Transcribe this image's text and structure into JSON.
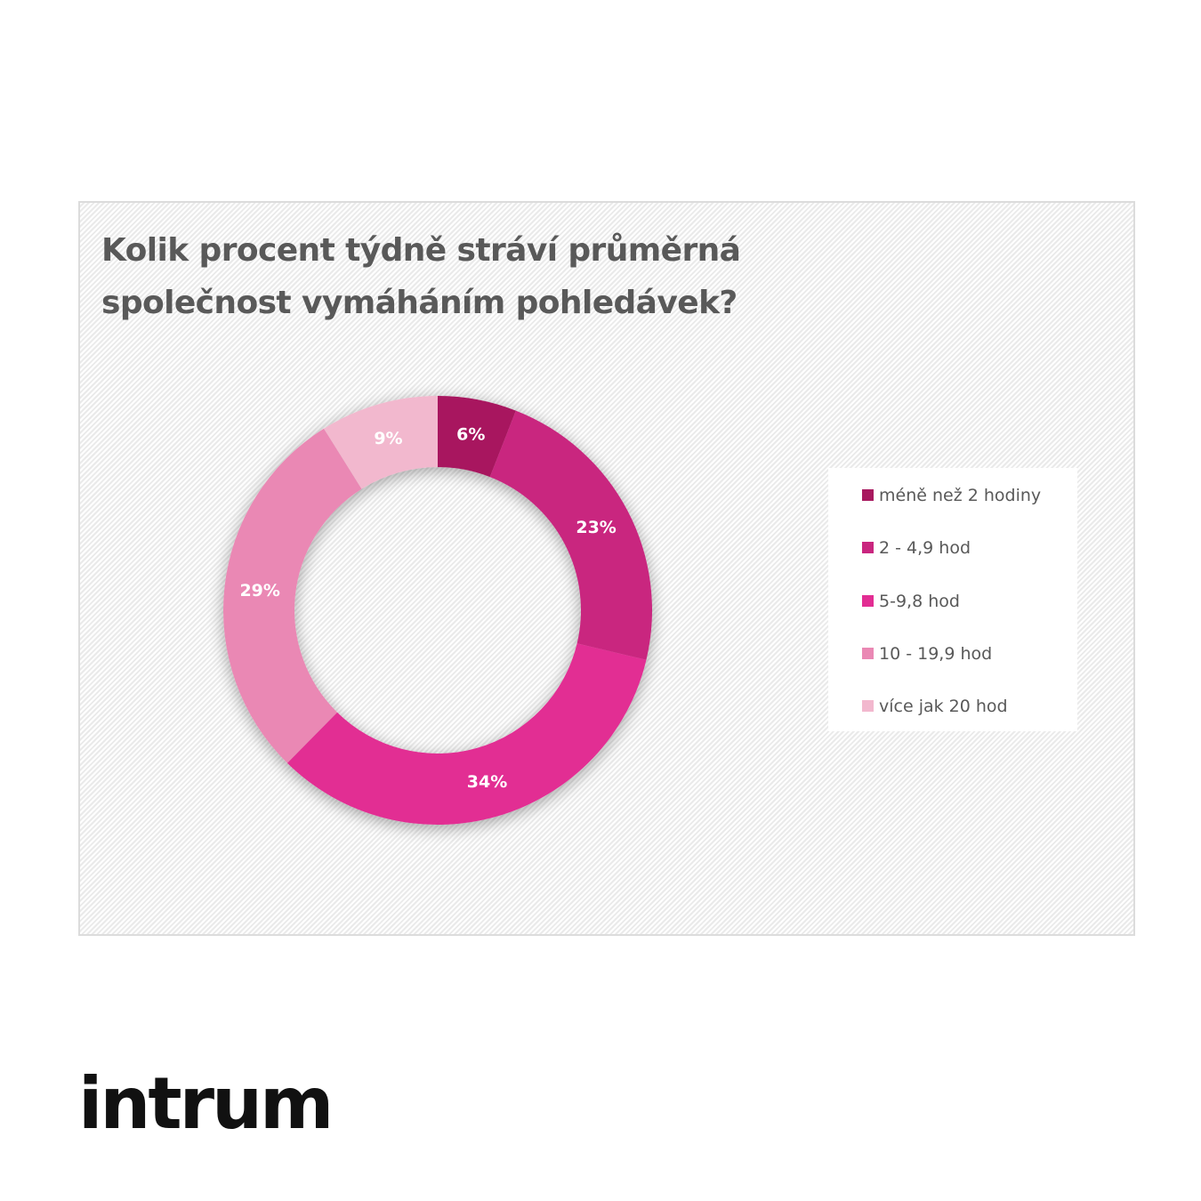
{
  "chart_data": {
    "type": "pie",
    "variant": "donut",
    "title": "Kolik procent týdně stráví průměrná společnost vymáháním pohledávek?",
    "categories": [
      "méně než 2 hodiny",
      "2 - 4,9 hod",
      "5-9,8 hod",
      "10 - 19,9 hod",
      "více jak 20 hod"
    ],
    "values": [
      6,
      23,
      34,
      29,
      9
    ],
    "data_labels": [
      "6%",
      "23%",
      "34%",
      "29%",
      "9%"
    ],
    "colors": [
      "#a8195f",
      "#c9267f",
      "#e22d93",
      "#ea88b4",
      "#f2b8ce"
    ],
    "legend_position": "right",
    "grid": false
  },
  "brand": {
    "logo_text": "intrum"
  }
}
